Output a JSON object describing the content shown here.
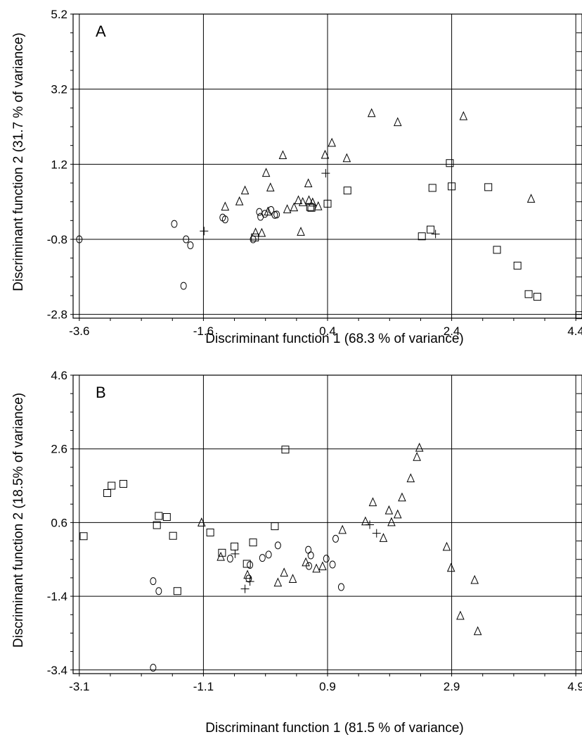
{
  "chart_data": [
    {
      "type": "scatter",
      "panel_label": "A",
      "xlabel": "Discriminant function 1 (68.3 % of variance)",
      "ylabel": "Discriminant function 2 (31.7 % of variance)",
      "xlim": [
        -3.7,
        4.5
      ],
      "ylim": [
        -2.9,
        5.2
      ],
      "x_ticks": [
        "-3.6",
        "-1.6",
        "0.4",
        "2.4",
        "4.4"
      ],
      "x_tick_values": [
        -3.6,
        -1.6,
        0.4,
        2.4,
        4.4
      ],
      "y_ticks": [
        "-2.8",
        "-0.8",
        "1.2",
        "3.2",
        "5.2"
      ],
      "y_tick_values": [
        -2.8,
        -0.8,
        1.2,
        3.2,
        5.2
      ],
      "grid": true,
      "series": [
        {
          "marker": "circle",
          "x": [
            -3.6,
            -2.07,
            -1.92,
            -1.81,
            -1.88,
            -1.29,
            -1.25,
            -0.8,
            -0.7,
            -0.61,
            -0.68,
            -0.51,
            -0.42,
            -0.45
          ],
          "y": [
            -0.8,
            -0.39,
            -2.04,
            -0.96,
            -0.8,
            -0.22,
            -0.27,
            -0.8,
            -0.07,
            -0.12,
            -0.2,
            -0.02,
            -0.14,
            -0.15
          ]
        },
        {
          "marker": "triangle",
          "x": [
            -1.25,
            -1.02,
            -0.93,
            -0.66,
            -0.76,
            -0.56,
            -0.59,
            -0.52,
            -0.32,
            -0.25,
            -0.14,
            -0.07,
            0.0,
            0.1,
            0.16,
            0.25,
            -0.03,
            0.09,
            0.36,
            0.47,
            0.71,
            1.11,
            1.53,
            2.59,
            3.68
          ],
          "y": [
            0.07,
            0.21,
            0.5,
            -0.63,
            -0.62,
            -0.06,
            0.97,
            0.58,
            1.44,
            -0.0,
            0.05,
            0.24,
            0.19,
            0.24,
            0.18,
            0.08,
            -0.6,
            0.69,
            1.45,
            1.77,
            1.36,
            2.56,
            2.32,
            2.48,
            0.28
          ]
        },
        {
          "marker": "square",
          "x": [
            -0.77,
            0.14,
            0.4,
            0.72,
            1.92,
            2.06,
            2.09,
            2.37,
            2.99,
            3.13,
            3.46,
            3.64,
            3.78,
            4.46,
            2.4,
            0.12
          ],
          "y": [
            -0.75,
            0.04,
            0.15,
            0.5,
            -0.72,
            -0.54,
            0.57,
            1.23,
            0.59,
            -1.08,
            -1.5,
            -2.26,
            -2.33,
            -2.82,
            0.61,
            0.06
          ]
        },
        {
          "marker": "plus",
          "x": [
            -1.59,
            0.37,
            2.14
          ],
          "y": [
            -0.58,
            0.96,
            -0.66
          ]
        }
      ]
    },
    {
      "type": "scatter",
      "panel_label": "B",
      "xlabel": "Discriminant function 1 (81.5 % of variance)",
      "ylabel": "Discriminant function 2 (18.5% of variance)",
      "xlim": [
        -3.2,
        5.0
      ],
      "ylim": [
        -3.5,
        4.6
      ],
      "x_ticks": [
        "-3.1",
        "-1.1",
        "0.9",
        "2.9",
        "4.9"
      ],
      "x_tick_values": [
        -3.1,
        -1.1,
        0.9,
        2.9,
        4.9
      ],
      "y_ticks": [
        "-3.4",
        "-1.4",
        "0.6",
        "2.6",
        "4.6"
      ],
      "y_tick_values": [
        -3.4,
        -1.4,
        0.6,
        2.6,
        4.6
      ],
      "grid": true,
      "series": [
        {
          "marker": "circle",
          "x": [
            -1.91,
            -1.82,
            -1.91,
            -0.67,
            -0.37,
            -0.35,
            -0.15,
            -0.05,
            0.1,
            0.6,
            0.63,
            0.98,
            1.12,
            1.03,
            0.88,
            0.59
          ],
          "y": [
            -3.34,
            -1.26,
            -0.99,
            -0.38,
            -0.92,
            -0.55,
            -0.36,
            -0.27,
            -0.02,
            -0.58,
            -0.29,
            -0.54,
            -1.15,
            0.16,
            -0.38,
            -0.14
          ]
        },
        {
          "marker": "triangle",
          "x": [
            -1.13,
            -0.82,
            -0.39,
            0.1,
            0.2,
            0.34,
            0.55,
            0.72,
            0.82,
            1.14,
            1.51,
            1.8,
            1.63,
            1.89,
            1.93,
            2.03,
            2.1,
            2.24,
            2.34,
            2.38,
            2.82,
            2.89,
            3.04,
            3.27,
            3.32
          ],
          "y": [
            0.6,
            -0.33,
            -0.82,
            -1.03,
            -0.76,
            -0.93,
            -0.48,
            -0.65,
            -0.59,
            0.4,
            0.63,
            0.18,
            1.15,
            0.93,
            0.61,
            0.82,
            1.28,
            1.8,
            2.38,
            2.63,
            -0.06,
            -0.63,
            -1.93,
            -0.96,
            -2.35
          ]
        },
        {
          "marker": "square",
          "x": [
            -3.03,
            -2.58,
            -2.65,
            -2.39,
            -1.82,
            -1.85,
            -1.69,
            -1.52,
            -1.59,
            -0.99,
            -0.8,
            -0.6,
            -0.4,
            -0.3,
            0.05,
            0.22
          ],
          "y": [
            0.23,
            1.6,
            1.4,
            1.65,
            0.78,
            0.53,
            0.75,
            -1.26,
            0.24,
            0.33,
            -0.22,
            -0.05,
            -0.52,
            0.06,
            0.5,
            2.58
          ]
        },
        {
          "marker": "plus",
          "x": [
            -0.59,
            -0.43,
            -0.35,
            1.58,
            1.69
          ],
          "y": [
            -0.25,
            -1.2,
            -1.0,
            0.54,
            0.31
          ]
        }
      ]
    }
  ]
}
